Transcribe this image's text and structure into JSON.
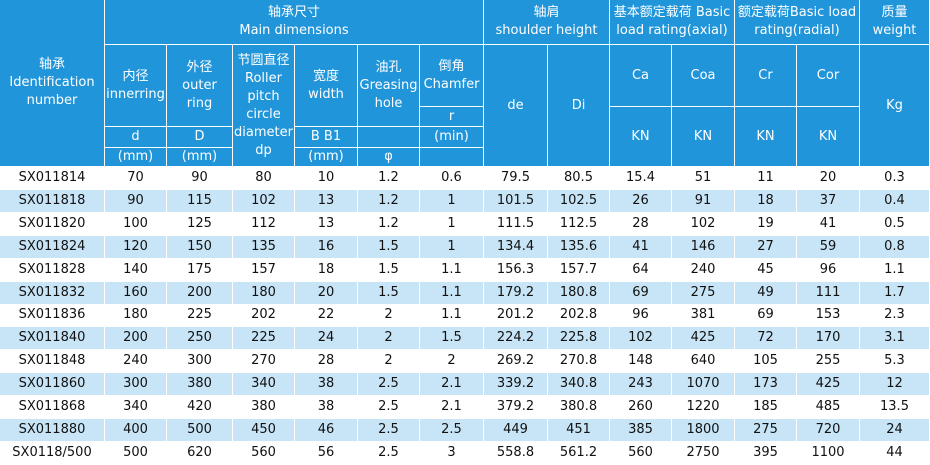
{
  "header": {
    "bearing": "轴承\nIdentification\nnumber",
    "main_dimensions": "轴承尺寸\nMain dimensions",
    "inner": {
      "name": "内径\ninnerring",
      "symbol": "d",
      "unit": "(mm)"
    },
    "outer": {
      "name": "外径\nouter\nring",
      "symbol": "D",
      "unit": "(mm)"
    },
    "pitch": "节圆直径\nRoller\npitch\ncircle\ndiameter\ndp",
    "width": {
      "name": "宽度\nwidth",
      "symbol": "B B1",
      "unit": "(mm)"
    },
    "oil": {
      "name": "油孔\nGreasing\nhole",
      "unit": "φ"
    },
    "chamfer": {
      "name": "倒角\nChamfer",
      "symbol": "r",
      "unit": "(min)"
    },
    "shoulder": {
      "name": "轴肩\nshoulder height",
      "de": "de",
      "Di": "Di"
    },
    "axial": {
      "name": "基本额定载荷 Basic\nload rating(axial)",
      "Ca": "Ca",
      "Coa": "Coa",
      "unit_Ca": "KN",
      "unit_Coa": "KN"
    },
    "radial": {
      "name": "额定载荷Basic load\nrating(radial)",
      "Cr": "Cr",
      "Cor": "Cor",
      "unit_Cr": "KN",
      "unit_Cor": "KN"
    },
    "weight": {
      "name": "质量\nweight",
      "unit": "Kg"
    }
  },
  "table": {
    "rows": [
      [
        "SX011814",
        "70",
        "90",
        "80",
        "10",
        "1.2",
        "0.6",
        "79.5",
        "80.5",
        "15.4",
        "51",
        "11",
        "20",
        "0.3"
      ],
      [
        "SX011818",
        "90",
        "115",
        "102",
        "13",
        "1.2",
        "1",
        "101.5",
        "102.5",
        "26",
        "91",
        "18",
        "37",
        "0.4"
      ],
      [
        "SX011820",
        "100",
        "125",
        "112",
        "13",
        "1.2",
        "1",
        "111.5",
        "112.5",
        "28",
        "102",
        "19",
        "41",
        "0.5"
      ],
      [
        "SX011824",
        "120",
        "150",
        "135",
        "16",
        "1.5",
        "1",
        "134.4",
        "135.6",
        "41",
        "146",
        "27",
        "59",
        "0.8"
      ],
      [
        "SX011828",
        "140",
        "175",
        "157",
        "18",
        "1.5",
        "1.1",
        "156.3",
        "157.7",
        "64",
        "240",
        "45",
        "96",
        "1.1"
      ],
      [
        "SX011832",
        "160",
        "200",
        "180",
        "20",
        "1.5",
        "1.1",
        "179.2",
        "180.8",
        "69",
        "275",
        "49",
        "111",
        "1.7"
      ],
      [
        "SX011836",
        "180",
        "225",
        "202",
        "22",
        "2",
        "1.1",
        "201.2",
        "202.8",
        "96",
        "381",
        "69",
        "153",
        "2.3"
      ],
      [
        "SX011840",
        "200",
        "250",
        "225",
        "24",
        "2",
        "1.5",
        "224.2",
        "225.8",
        "102",
        "425",
        "72",
        "170",
        "3.1"
      ],
      [
        "SX011848",
        "240",
        "300",
        "270",
        "28",
        "2",
        "2",
        "269.2",
        "270.8",
        "148",
        "640",
        "105",
        "255",
        "5.3"
      ],
      [
        "SX011860",
        "300",
        "380",
        "340",
        "38",
        "2.5",
        "2.1",
        "339.2",
        "340.8",
        "243",
        "1070",
        "173",
        "425",
        "12"
      ],
      [
        "SX011868",
        "340",
        "420",
        "380",
        "38",
        "2.5",
        "2.1",
        "379.2",
        "380.8",
        "260",
        "1220",
        "185",
        "485",
        "13.5"
      ],
      [
        "SX011880",
        "400",
        "500",
        "450",
        "46",
        "2.5",
        "2.5",
        "449",
        "451",
        "385",
        "1800",
        "275",
        "720",
        "24"
      ],
      [
        "SX0118/500",
        "500",
        "620",
        "560",
        "56",
        "2.5",
        "3",
        "558.8",
        "561.2",
        "560",
        "2750",
        "395",
        "1100",
        "44"
      ]
    ]
  }
}
